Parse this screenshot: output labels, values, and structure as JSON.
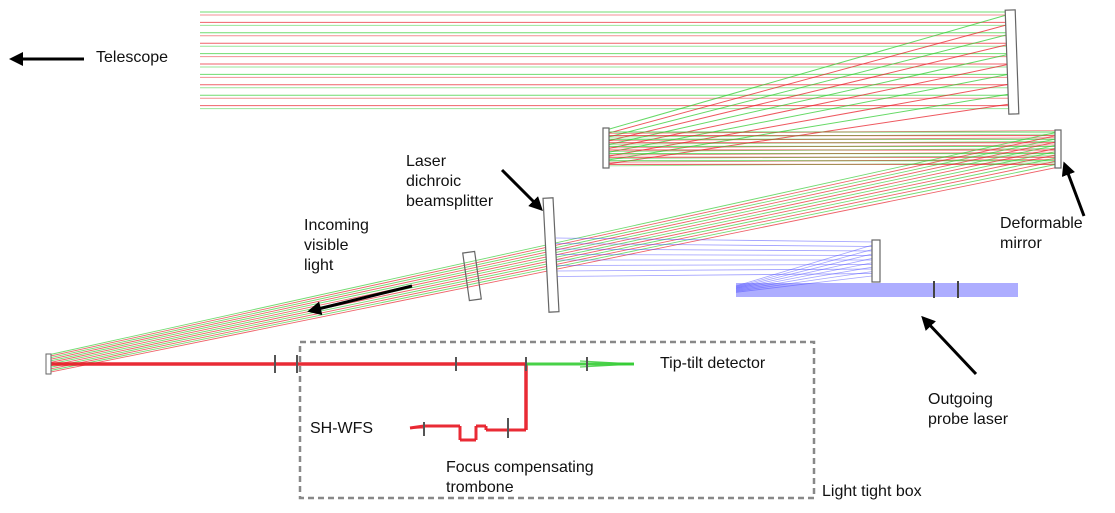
{
  "labels": {
    "telescope": "Telescope",
    "laser_dichroic": [
      "Laser",
      "dichroic",
      "beamsplitter"
    ],
    "incoming_visible": [
      "Incoming",
      "visible",
      "light"
    ],
    "deformable_mirror": [
      "Deformable",
      "mirror"
    ],
    "tip_tilt": "Tip-tilt detector",
    "sh_wfs": "SH-WFS",
    "focus_trombone": [
      "Focus compensating",
      "trombone"
    ],
    "outgoing_probe": [
      "Outgoing",
      "probe laser"
    ],
    "light_tight_box": "Light tight box"
  },
  "colors": {
    "ray_green": "#33cc33",
    "ray_red": "#e8202a",
    "ray_blue": "#4a4aff",
    "optic_gray": "#666666",
    "box_dash": "#888888",
    "arrow": "#000000"
  }
}
